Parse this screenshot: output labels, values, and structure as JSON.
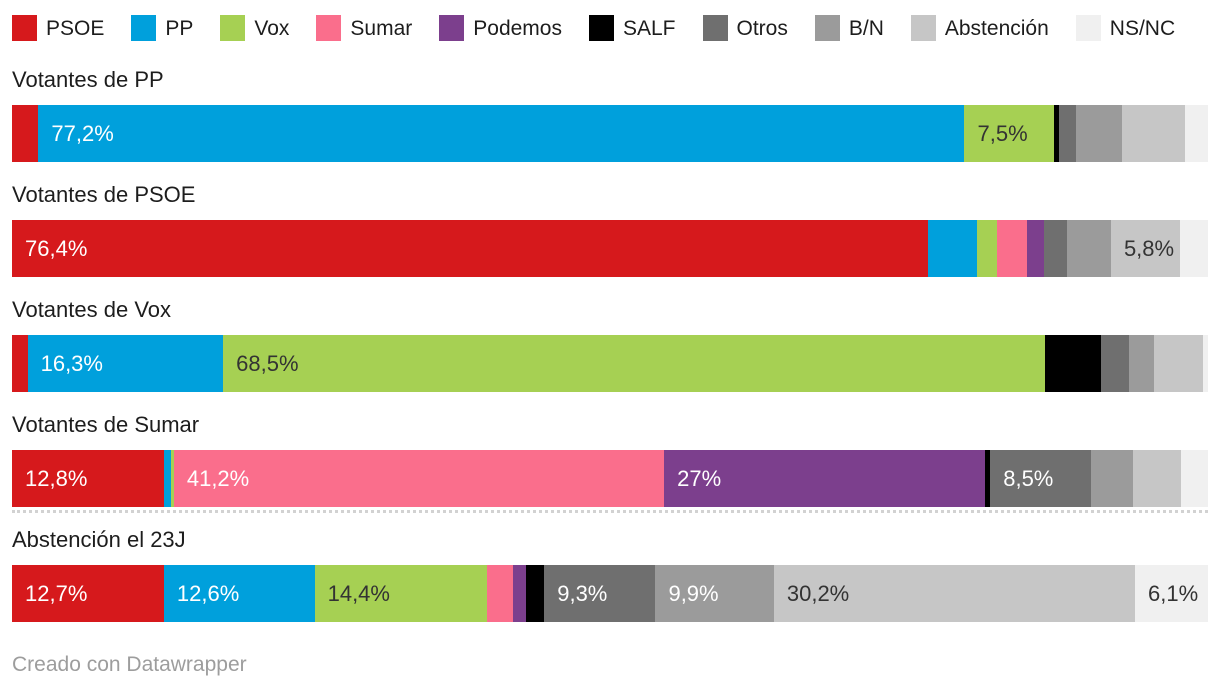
{
  "legend": {
    "items": [
      {
        "label": "PSOE",
        "color": "#d6191c"
      },
      {
        "label": "PP",
        "color": "#00a0dc"
      },
      {
        "label": "Vox",
        "color": "#a6d053"
      },
      {
        "label": "Sumar",
        "color": "#fa6e8c"
      },
      {
        "label": "Podemos",
        "color": "#7c3f8d"
      },
      {
        "label": "SALF",
        "color": "#000000"
      },
      {
        "label": "Otros",
        "color": "#6f6f6f"
      },
      {
        "label": "B/N",
        "color": "#9b9b9b"
      },
      {
        "label": "Abstención",
        "color": "#c6c6c6"
      },
      {
        "label": "NS/NC",
        "color": "#f0f0f0"
      }
    ]
  },
  "chart_data": {
    "type": "bar",
    "variant": "stacked-horizontal-100pct",
    "title": "",
    "xlim": [
      0,
      100
    ],
    "grid": false,
    "legend_position": "top",
    "parties": [
      "PSOE",
      "PP",
      "Vox",
      "Sumar",
      "Podemos",
      "SALF",
      "Otros",
      "B/N",
      "Abstención",
      "NS/NC"
    ],
    "colors": {
      "PSOE": "#d6191c",
      "PP": "#00a0dc",
      "Vox": "#a6d053",
      "Sumar": "#fa6e8c",
      "Podemos": "#7c3f8d",
      "SALF": "#000000",
      "Otros": "#6f6f6f",
      "B/N": "#9b9b9b",
      "Abstención": "#c6c6c6",
      "NS/NC": "#f0f0f0"
    },
    "rows": [
      {
        "label": "Votantes de PP",
        "divider_below": false,
        "segments": [
          {
            "party": "PSOE",
            "value": 2.2,
            "label": "",
            "label_style": ""
          },
          {
            "party": "PP",
            "value": 77.2,
            "label": "77,2%",
            "label_style": "light"
          },
          {
            "party": "Vox",
            "value": 7.5,
            "label": "7,5%",
            "label_style": "dark"
          },
          {
            "party": "SALF",
            "value": 0.4,
            "label": "",
            "label_style": ""
          },
          {
            "party": "Otros",
            "value": 1.4,
            "label": "",
            "label_style": ""
          },
          {
            "party": "B/N",
            "value": 3.8,
            "label": "",
            "label_style": ""
          },
          {
            "party": "Abstención",
            "value": 5.3,
            "label": "",
            "label_style": ""
          },
          {
            "party": "NS/NC",
            "value": 1.9,
            "label": "",
            "label_style": ""
          }
        ]
      },
      {
        "label": "Votantes de PSOE",
        "divider_below": false,
        "segments": [
          {
            "party": "PSOE",
            "value": 76.4,
            "label": "76,4%",
            "label_style": "light"
          },
          {
            "party": "PP",
            "value": 4.1,
            "label": "",
            "label_style": ""
          },
          {
            "party": "Vox",
            "value": 1.7,
            "label": "",
            "label_style": ""
          },
          {
            "party": "Sumar",
            "value": 2.5,
            "label": "",
            "label_style": ""
          },
          {
            "party": "Podemos",
            "value": 1.4,
            "label": "",
            "label_style": ""
          },
          {
            "party": "Otros",
            "value": 1.9,
            "label": "",
            "label_style": ""
          },
          {
            "party": "B/N",
            "value": 3.7,
            "label": "",
            "label_style": ""
          },
          {
            "party": "Abstención",
            "value": 5.8,
            "label": "5,8%",
            "label_style": "dark"
          },
          {
            "party": "NS/NC",
            "value": 2.3,
            "label": "",
            "label_style": ""
          }
        ]
      },
      {
        "label": "Votantes de Vox",
        "divider_below": false,
        "segments": [
          {
            "party": "PSOE",
            "value": 1.3,
            "label": "",
            "label_style": ""
          },
          {
            "party": "PP",
            "value": 16.3,
            "label": "16,3%",
            "label_style": "light"
          },
          {
            "party": "Vox",
            "value": 68.5,
            "label": "68,5%",
            "label_style": "dark"
          },
          {
            "party": "SALF",
            "value": 4.7,
            "label": "",
            "label_style": ""
          },
          {
            "party": "Otros",
            "value": 2.3,
            "label": "",
            "label_style": ""
          },
          {
            "party": "B/N",
            "value": 2.1,
            "label": "",
            "label_style": ""
          },
          {
            "party": "Abstención",
            "value": 4.1,
            "label": "",
            "label_style": ""
          },
          {
            "party": "NS/NC",
            "value": 0.4,
            "label": "",
            "label_style": ""
          }
        ]
      },
      {
        "label": "Votantes de Sumar",
        "divider_below": true,
        "segments": [
          {
            "party": "PSOE",
            "value": 12.8,
            "label": "12,8%",
            "label_style": "light"
          },
          {
            "party": "PP",
            "value": 0.6,
            "label": "",
            "label_style": ""
          },
          {
            "party": "Vox",
            "value": 0.2,
            "label": "",
            "label_style": ""
          },
          {
            "party": "Sumar",
            "value": 41.2,
            "label": "41,2%",
            "label_style": "light"
          },
          {
            "party": "Podemos",
            "value": 27,
            "label": "27%",
            "label_style": "light"
          },
          {
            "party": "SALF",
            "value": 0.4,
            "label": "",
            "label_style": ""
          },
          {
            "party": "Otros",
            "value": 8.5,
            "label": "8,5%",
            "label_style": "light"
          },
          {
            "party": "B/N",
            "value": 3.5,
            "label": "",
            "label_style": ""
          },
          {
            "party": "Abstención",
            "value": 4.0,
            "label": "",
            "label_style": ""
          },
          {
            "party": "NS/NC",
            "value": 2.3,
            "label": "",
            "label_style": ""
          }
        ]
      },
      {
        "label": "Abstención el 23J",
        "divider_below": false,
        "segments": [
          {
            "party": "PSOE",
            "value": 12.7,
            "label": "12,7%",
            "label_style": "light"
          },
          {
            "party": "PP",
            "value": 12.6,
            "label": "12,6%",
            "label_style": "light"
          },
          {
            "party": "Vox",
            "value": 14.4,
            "label": "14,4%",
            "label_style": "dark"
          },
          {
            "party": "Sumar",
            "value": 2.2,
            "label": "",
            "label_style": ""
          },
          {
            "party": "Podemos",
            "value": 1.1,
            "label": "",
            "label_style": ""
          },
          {
            "party": "SALF",
            "value": 1.5,
            "label": "",
            "label_style": ""
          },
          {
            "party": "Otros",
            "value": 9.3,
            "label": "9,3%",
            "label_style": "light"
          },
          {
            "party": "B/N",
            "value": 9.9,
            "label": "9,9%",
            "label_style": "light"
          },
          {
            "party": "Abstención",
            "value": 30.2,
            "label": "30,2%",
            "label_style": "dark"
          },
          {
            "party": "NS/NC",
            "value": 6.1,
            "label": "6,1%",
            "label_style": "dark"
          }
        ]
      }
    ]
  },
  "footer": {
    "credit": "Creado con Datawrapper"
  }
}
